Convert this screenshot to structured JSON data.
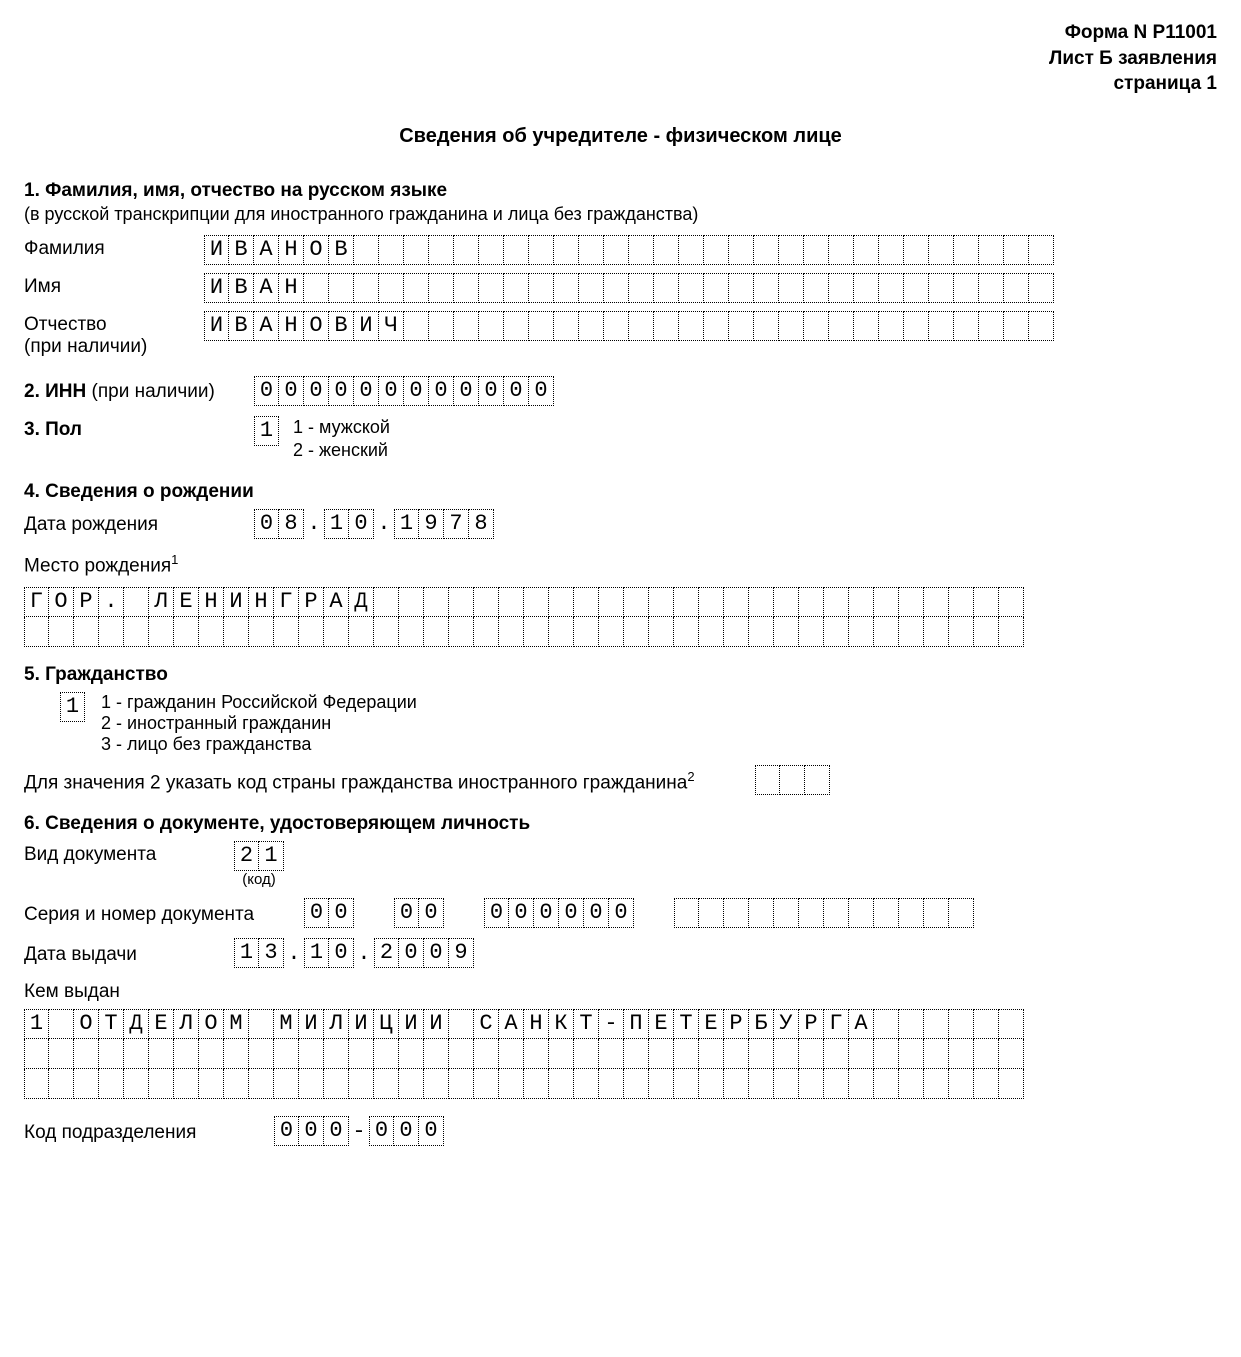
{
  "header": {
    "form_no": "Форма N Р11001",
    "sheet": "Лист Б заявления",
    "page": "страница 1"
  },
  "page_title": "Сведения об учредителе - физическом лице",
  "section1": {
    "heading": "1. Фамилия, имя, отчество на русском языке",
    "subtext": "(в русской транскрипции для иностранного гражданина и лица без гражданства)",
    "surname_label": "Фамилия",
    "surname_value": "ИВАНОВ",
    "name_label": "Имя",
    "name_value": "ИВАН",
    "patronymic_label": "Отчество",
    "patronymic_hint": "(при наличии)",
    "patronymic_value": "ИВАНОВИЧ",
    "field_length": 34
  },
  "section2": {
    "label_bold": "2. ИНН",
    "label_rest": " (при наличии)",
    "value": "000000000000",
    "length": 12
  },
  "section3": {
    "label": "3. Пол",
    "value": "1",
    "opt1": "1 - мужской",
    "opt2": "2 - женский"
  },
  "section4": {
    "heading": "4. Сведения о рождении",
    "dob_label": "Дата рождения",
    "dob_day": "08",
    "dob_month": "10",
    "dob_year": "1978",
    "pob_label": "Место рождения",
    "pob_sup": "1",
    "pob_value": "ГОР. ЛЕНИНГРАД",
    "pob_row_length": 40,
    "pob_rows": 2
  },
  "section5": {
    "heading": "5. Гражданство",
    "value": "1",
    "opt1": "1 - гражданин Российской Федерации",
    "opt2": "2 - иностранный гражданин",
    "opt3": "3 - лицо без гражданства",
    "foreign_label": "Для значения 2 указать код страны гражданства иностранного гражданина",
    "foreign_sup": "2",
    "foreign_code_length": 3,
    "foreign_code_value": ""
  },
  "section6": {
    "heading": "6. Сведения о документе, удостоверяющем личность",
    "doc_type_label": "Вид документа",
    "doc_type_value": "21",
    "doc_type_hint": "(код)",
    "series_no_label": "Серия и номер документа",
    "series_groups": [
      "00",
      "00",
      "000000"
    ],
    "series_empty_tail": 12,
    "issue_date_label": "Дата выдачи",
    "issue_day": "13",
    "issue_month": "10",
    "issue_year": "2009",
    "issued_by_label": "Кем выдан",
    "issued_by_value": "1 ОТДЕЛОМ МИЛИЦИИ САНКТ-ПЕТЕРБУРГА",
    "issued_by_row_length": 40,
    "issued_by_rows": 3,
    "subdiv_label": "Код подразделения",
    "subdiv_a": "000",
    "subdiv_b": "000"
  },
  "dot": ".",
  "dash": "-"
}
